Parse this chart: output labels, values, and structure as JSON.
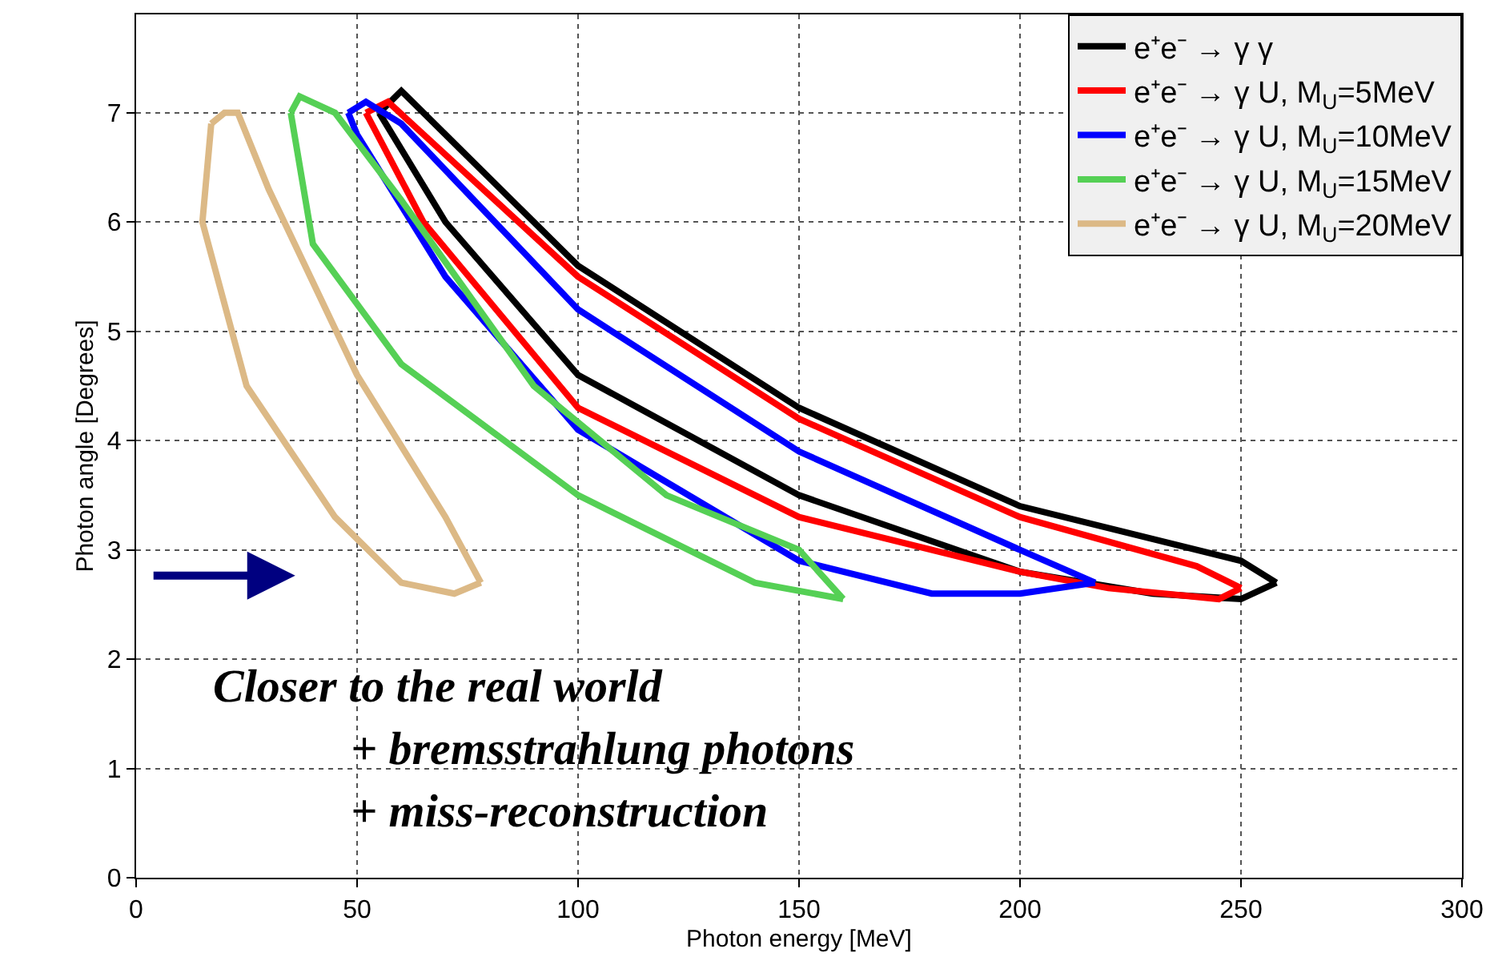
{
  "chart_data": {
    "type": "line",
    "xlabel": "Photon energy [MeV]",
    "ylabel": "Photon angle [Degrees]",
    "xlim": [
      0,
      300
    ],
    "xticks": [
      0,
      50,
      100,
      150,
      200,
      250,
      300
    ],
    "ylim": [
      0,
      7.9
    ],
    "yticks": [
      0,
      1,
      2,
      3,
      4,
      5,
      6,
      7
    ],
    "grid": true,
    "legend": "top right",
    "marker": "none",
    "line_style": "solid",
    "series": [
      {
        "name": "e⁺e⁻ → γ γ",
        "color": "#000000",
        "x": [
          55,
          60,
          100,
          150,
          200,
          250,
          258
        ],
        "values": [
          7.0,
          7.2,
          5.6,
          4.3,
          3.4,
          2.9,
          2.7
        ]
      },
      {
        "color": "#000000",
        "x": [
          55,
          70,
          100,
          150,
          200,
          230,
          250,
          258
        ],
        "values": [
          7.0,
          6.0,
          4.6,
          3.5,
          2.8,
          2.6,
          2.55,
          2.7
        ]
      },
      {
        "name": "e⁺e⁻ → γ U, M$_{U}$=5MeV",
        "color": "#ff0000",
        "x": [
          52,
          57,
          100,
          150,
          200,
          240,
          250
        ],
        "values": [
          7.0,
          7.1,
          5.5,
          4.2,
          3.3,
          2.85,
          2.65
        ]
      },
      {
        "color": "#ff0000",
        "x": [
          52,
          65,
          100,
          150,
          200,
          220,
          245,
          250
        ],
        "values": [
          7.0,
          6.0,
          4.3,
          3.3,
          2.8,
          2.65,
          2.55,
          2.65
        ]
      },
      {
        "name": "e⁺e⁻ → γ U, M$_{U}$=10MeV",
        "color": "#0000ff",
        "x": [
          48,
          52,
          60,
          100,
          150,
          200,
          217
        ],
        "values": [
          7.0,
          7.1,
          6.9,
          5.2,
          3.9,
          3.0,
          2.7
        ]
      },
      {
        "color": "#0000ff",
        "x": [
          48,
          50,
          70,
          100,
          150,
          180,
          200,
          217
        ],
        "values": [
          7.0,
          6.8,
          5.5,
          4.1,
          2.9,
          2.6,
          2.6,
          2.7
        ]
      },
      {
        "name": "e⁺e⁻ → γ U, M$_{U}$=15MeV",
        "color": "#55d055",
        "x": [
          35,
          37,
          45,
          60,
          90,
          120,
          150,
          160
        ],
        "values": [
          7.0,
          7.15,
          7.0,
          6.2,
          4.5,
          3.5,
          3.0,
          2.55
        ]
      },
      {
        "color": "#55d055",
        "x": [
          35,
          40,
          60,
          100,
          140,
          160
        ],
        "values": [
          7.0,
          5.8,
          4.7,
          3.5,
          2.7,
          2.55
        ]
      },
      {
        "name": "e⁺e⁻ → γ U, M$_{U}$=20MeV",
        "color": "#dcb986",
        "x": [
          17,
          20,
          23,
          30,
          50,
          70,
          78
        ],
        "values": [
          6.9,
          7.0,
          7.0,
          6.3,
          4.6,
          3.3,
          2.7
        ]
      },
      {
        "color": "#dcb986",
        "x": [
          17,
          15,
          25,
          45,
          60,
          72,
          78
        ],
        "values": [
          6.9,
          6.0,
          4.5,
          3.3,
          2.7,
          2.6,
          2.7
        ]
      }
    ],
    "annotations": [
      "Closer to the real world",
      "+ bremsstrahlung photons",
      "+ miss-reconstruction"
    ]
  }
}
